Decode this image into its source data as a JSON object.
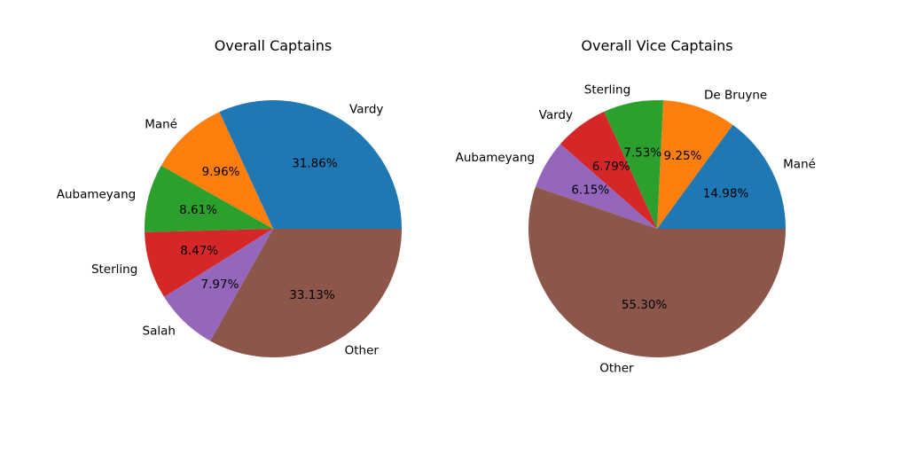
{
  "chart_data": [
    {
      "type": "pie",
      "title": "Overall Captains",
      "categories": [
        "Vardy",
        "Mané",
        "Aubameyang",
        "Sterling",
        "Salah",
        "Other"
      ],
      "values": [
        31.86,
        9.96,
        8.61,
        8.47,
        7.97,
        33.13
      ],
      "value_labels": [
        "31.86%",
        "9.96%",
        "8.61%",
        "8.47%",
        "7.97%",
        "33.13%"
      ],
      "colors": [
        "#1f77b4",
        "#ff7f0e",
        "#2ca02c",
        "#d62728",
        "#9467bd",
        "#8c564b"
      ],
      "start_angle_deg": 0,
      "direction": "counterclockwise"
    },
    {
      "type": "pie",
      "title": "Overall Vice Captains",
      "categories": [
        "Mané",
        "De Bruyne",
        "Sterling",
        "Vardy",
        "Aubameyang",
        "Other"
      ],
      "values": [
        14.98,
        9.25,
        7.53,
        6.79,
        6.15,
        55.3
      ],
      "value_labels": [
        "14.98%",
        "9.25%",
        "7.53%",
        "6.79%",
        "6.15%",
        "55.30%"
      ],
      "colors": [
        "#1f77b4",
        "#ff7f0e",
        "#2ca02c",
        "#d62728",
        "#9467bd",
        "#8c564b"
      ],
      "start_angle_deg": 0,
      "direction": "counterclockwise"
    }
  ]
}
